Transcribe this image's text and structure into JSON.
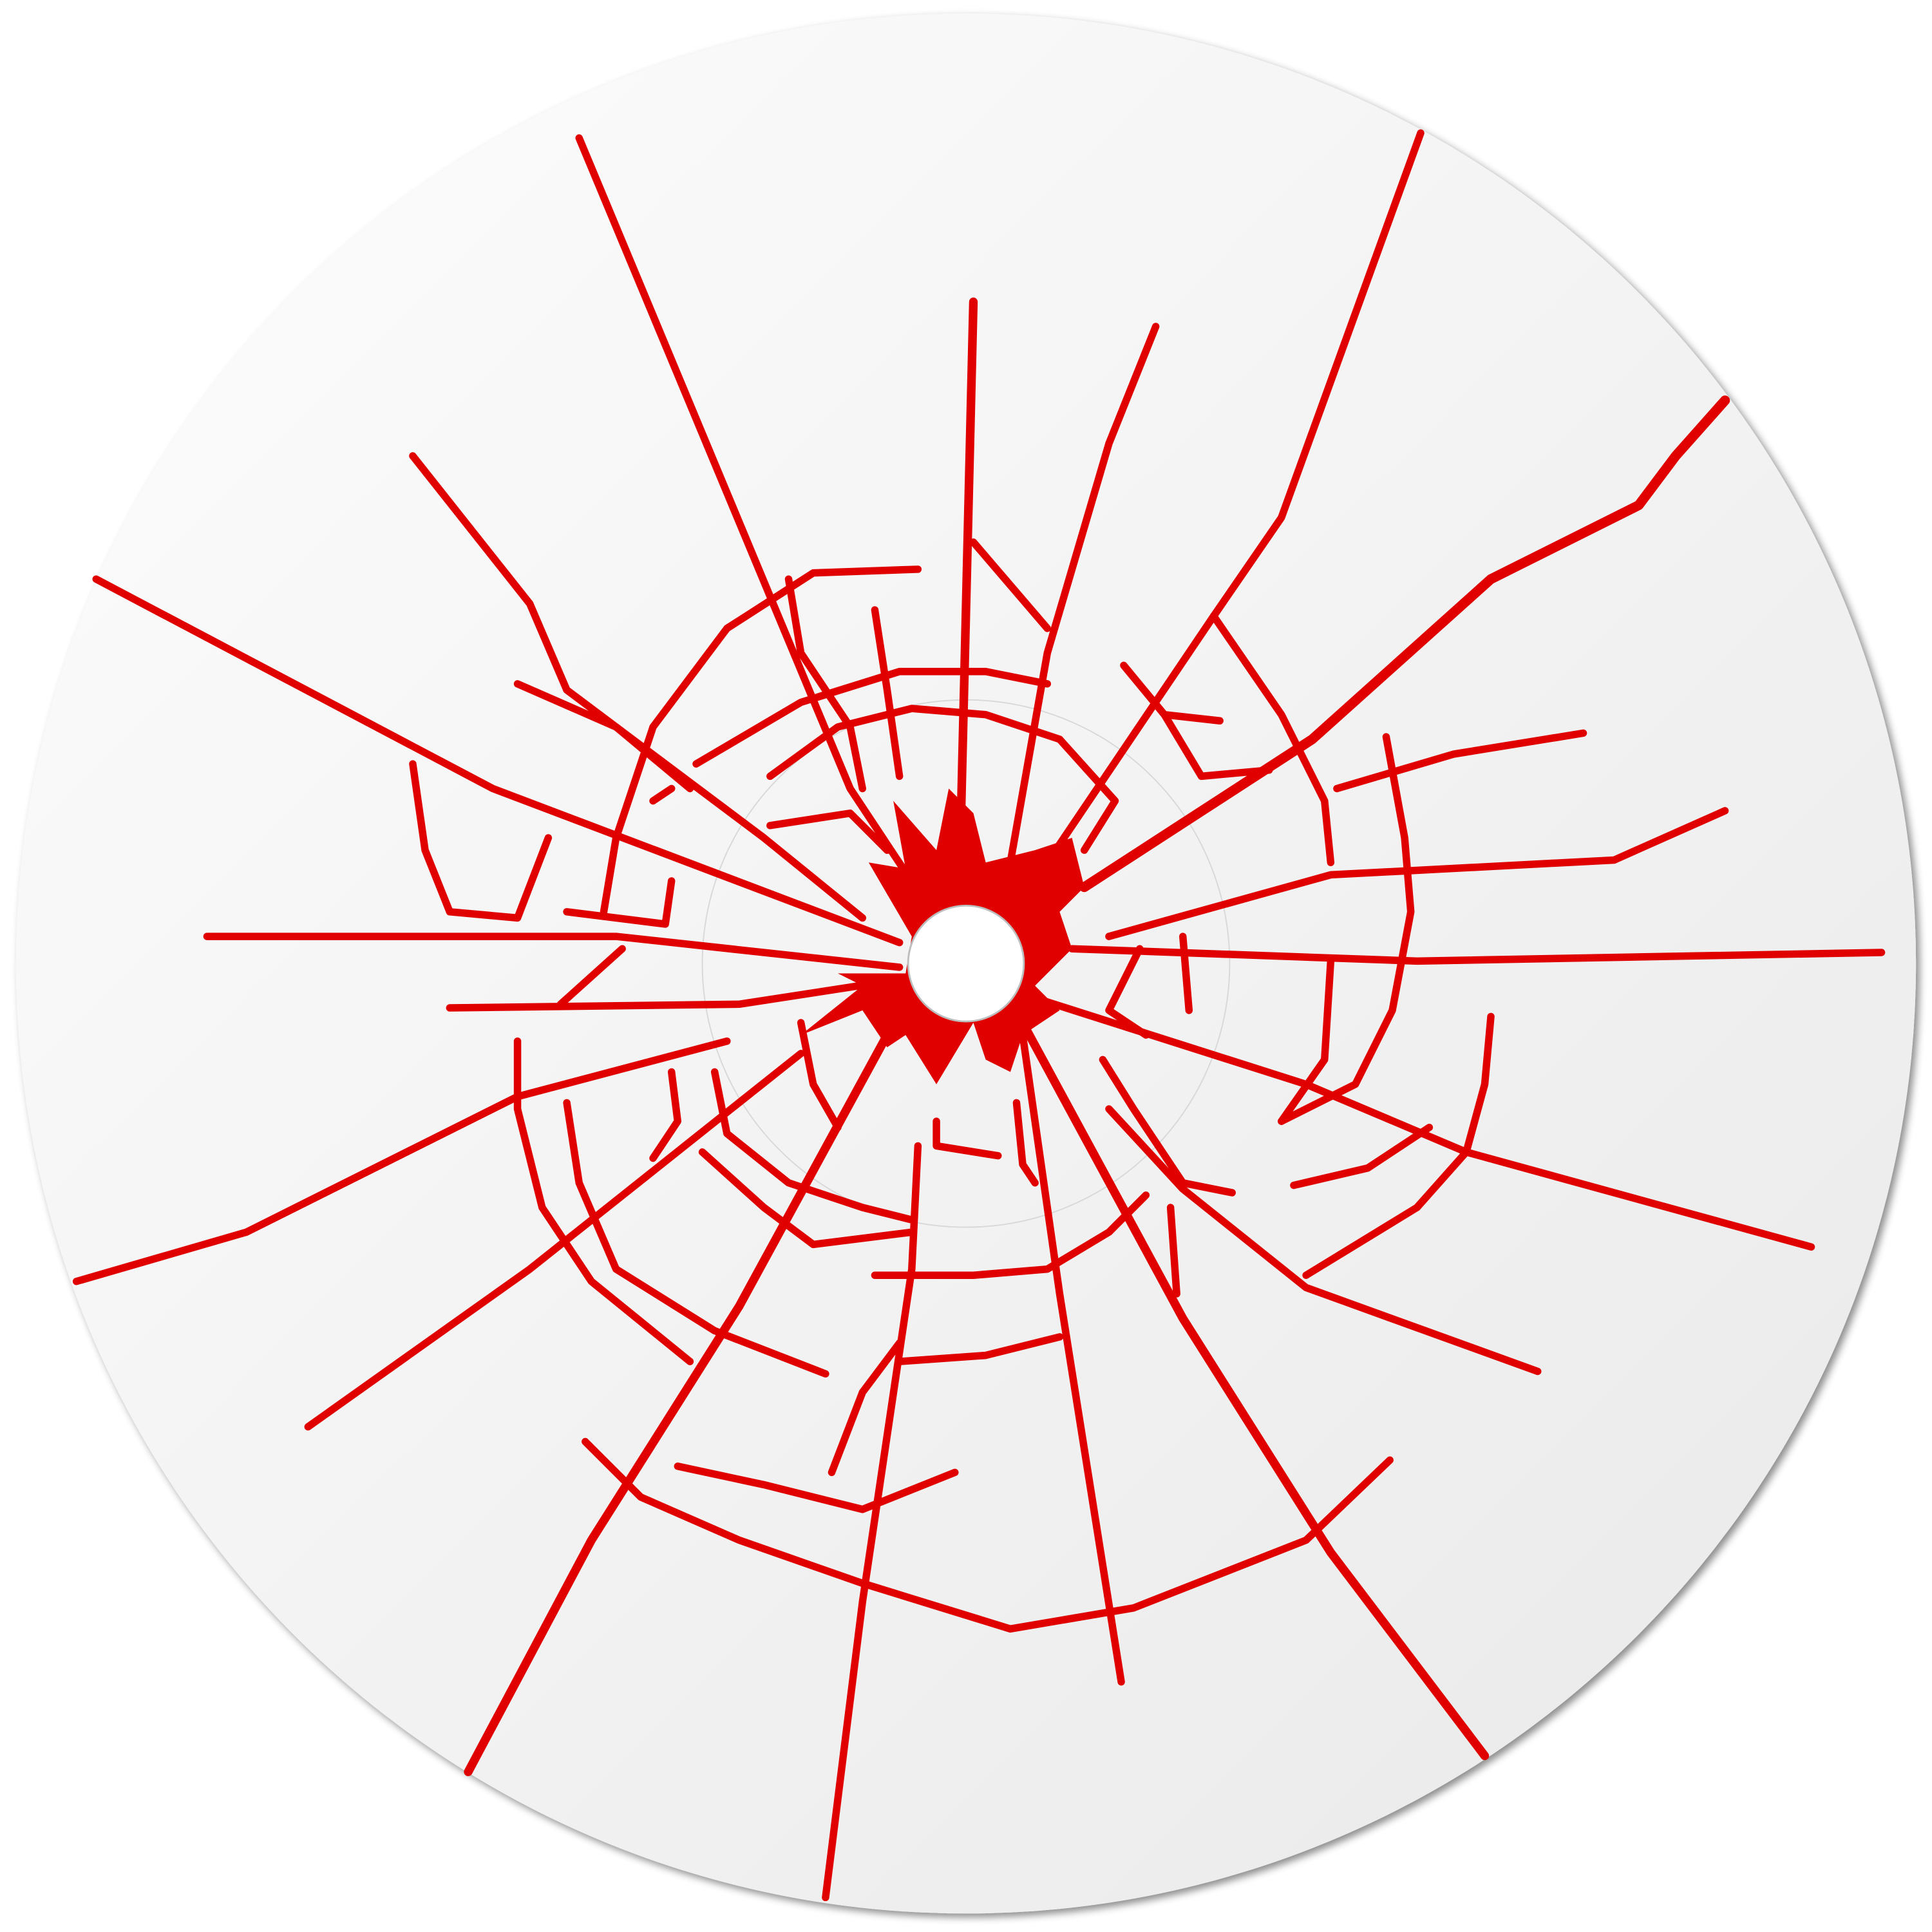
{
  "disc": {
    "label_art": "shattered-glass-cracks",
    "colors": {
      "crack": "#e00000",
      "disc_light": "#fbfbfb",
      "disc_dark": "#ececec",
      "rim_shadow": "#9a9a9a",
      "hole": "#ffffff"
    }
  }
}
